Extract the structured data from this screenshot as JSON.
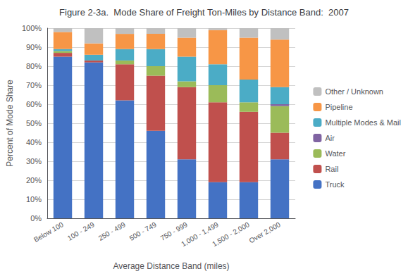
{
  "chart_data": {
    "type": "bar",
    "title": "Figure 2-3a.  Mode Share of Freight Ton-Miles by Distance Band:  2007",
    "xlabel": "Average Distance Band (miles)",
    "ylabel": "Percent of Mode Share",
    "categories": [
      "Below 100",
      "100 - 249",
      "250 - 499",
      "500 - 749",
      "750 - 999",
      "1,000 - 1,499",
      "1,500 - 2,000",
      "Over 2,000"
    ],
    "series": [
      {
        "name": "Truck",
        "color": "#4472C4",
        "values": [
          85,
          82,
          62,
          46,
          31,
          19,
          19,
          31
        ]
      },
      {
        "name": "Rail",
        "color": "#C0504D",
        "values": [
          2,
          1,
          19,
          29,
          38,
          42,
          37,
          14
        ]
      },
      {
        "name": "Water",
        "color": "#9BBB59",
        "values": [
          1,
          0,
          2,
          5,
          3,
          9,
          5,
          14
        ]
      },
      {
        "name": "Air",
        "color": "#8064A2",
        "values": [
          0,
          0,
          0,
          0,
          0,
          0,
          0,
          1
        ]
      },
      {
        "name": "Multiple Modes & Mail",
        "color": "#4BACC6",
        "values": [
          1,
          3,
          6,
          9,
          13,
          11,
          12,
          9
        ]
      },
      {
        "name": "Pipeline",
        "color": "#F79646",
        "values": [
          9,
          6,
          8,
          8,
          10,
          18,
          22,
          25
        ]
      },
      {
        "name": "Other / Unknown",
        "color": "#C0C0C0",
        "values": [
          2,
          8,
          3,
          3,
          5,
          1,
          5,
          6
        ]
      }
    ],
    "stacked": true,
    "ylim": [
      0,
      100
    ],
    "yticks": [
      {
        "value": 0,
        "label": "0%"
      },
      {
        "value": 10,
        "label": "10%"
      },
      {
        "value": 20,
        "label": "20%"
      },
      {
        "value": 30,
        "label": "30%"
      },
      {
        "value": 40,
        "label": "40%"
      },
      {
        "value": 50,
        "label": "50%"
      },
      {
        "value": 60,
        "label": "60%"
      },
      {
        "value": 70,
        "label": "70%"
      },
      {
        "value": 80,
        "label": "80%"
      },
      {
        "value": 90,
        "label": "90%"
      },
      {
        "value": 100,
        "label": "100%"
      }
    ],
    "grid": true,
    "legend": "right"
  }
}
